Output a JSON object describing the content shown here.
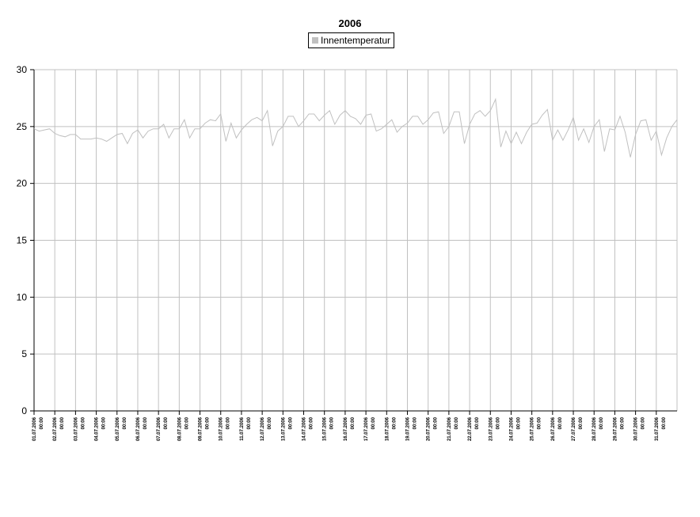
{
  "chart_data": {
    "type": "line",
    "title": "2006",
    "xlabel": "",
    "ylabel": "",
    "ylim": [
      0,
      30
    ],
    "yticks": [
      0,
      5,
      10,
      15,
      20,
      25,
      30
    ],
    "grid": true,
    "legend_placement": "top-center",
    "x_tick_labels": [
      "01.07.2006 00:00",
      "02.07.2006 00:00",
      "03.07.2006 00:00",
      "04.07.2006 00:00",
      "05.07.2006 00:00",
      "06.07.2006 00:00",
      "07.07.2006 00:00",
      "08.07.2006 00:00",
      "09.07.2006 00:00",
      "10.07.2006 00:00",
      "11.07.2006 00:00",
      "12.07.2006 00:00",
      "13.07.2006 00:00",
      "14.07.2006 00:00",
      "15.07.2006 00:00",
      "16.07.2006 00:00",
      "17.07.2006 00:00",
      "18.07.2006 00:00",
      "19.07.2006 00:00",
      "20.07.2006 00:00",
      "21.07.2006 00:00",
      "22.07.2006 00:00",
      "23.07.2006 00:00",
      "24.07.2006 00:00",
      "25.07.2006 00:00",
      "26.07.2006 00:00",
      "27.07.2006 00:00",
      "28.07.2006 00:00",
      "29.07.2006 00:00",
      "30.07.2006 00:00",
      "31.07.2006 00:00"
    ],
    "series": [
      {
        "name": "Innentemperatur",
        "color": "#c0c0c0",
        "x_start": "01.07.2006 00:00",
        "x_step_hours": 6,
        "values": [
          24.8,
          24.6,
          24.7,
          24.8,
          24.4,
          24.2,
          24.1,
          24.3,
          24.3,
          23.9,
          23.9,
          23.9,
          24.0,
          23.9,
          23.7,
          24.0,
          24.3,
          24.4,
          23.5,
          24.4,
          24.7,
          24.0,
          24.6,
          24.8,
          24.8,
          25.2,
          24.0,
          24.8,
          24.8,
          25.6,
          24.0,
          24.8,
          24.8,
          25.3,
          25.6,
          25.5,
          26.1,
          23.7,
          25.3,
          24.0,
          24.7,
          25.2,
          25.6,
          25.8,
          25.5,
          26.4,
          23.3,
          24.6,
          25.0,
          25.9,
          25.9,
          25.0,
          25.5,
          26.1,
          26.1,
          25.5,
          26.0,
          26.4,
          25.2,
          26.0,
          26.4,
          25.9,
          25.7,
          25.2,
          26.0,
          26.1,
          24.6,
          24.8,
          25.2,
          25.6,
          24.5,
          25.0,
          25.3,
          25.9,
          25.9,
          25.2,
          25.6,
          26.2,
          26.3,
          24.4,
          25.0,
          26.3,
          26.3,
          23.5,
          25.2,
          26.1,
          26.4,
          25.9,
          26.4,
          27.4,
          23.2,
          24.6,
          23.5,
          24.5,
          23.5,
          24.5,
          25.2,
          25.3,
          26.0,
          26.5,
          23.8,
          24.7,
          23.8,
          24.7,
          25.8,
          23.8,
          24.8,
          23.6,
          25.0,
          25.6,
          22.8,
          24.8,
          24.7,
          25.9,
          24.5,
          22.3,
          24.3,
          25.5,
          25.6,
          23.8,
          24.6,
          22.5,
          24.0,
          25.0,
          25.6
        ]
      }
    ]
  }
}
